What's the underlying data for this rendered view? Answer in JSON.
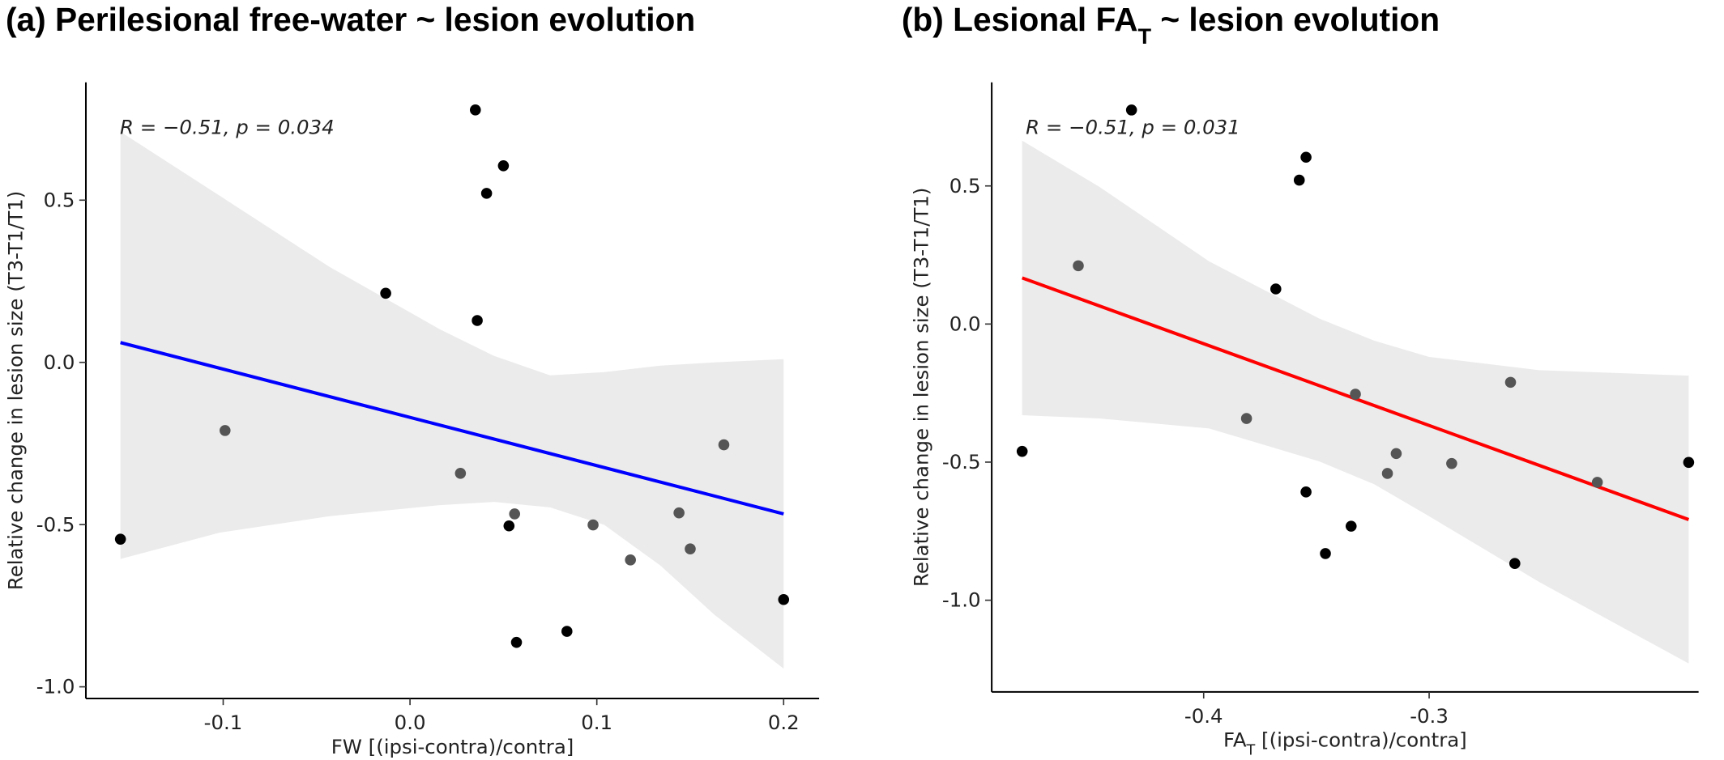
{
  "chart_data": [
    {
      "type": "scatter",
      "title": "(a) Perilesional free-water ~ lesion evolution",
      "xlabel": "FW [(ipsi-contra)/contra]",
      "ylabel": "Relative change in lesion size (T3-T1/T1)",
      "annotation": "R = −0.51, p = 0.034",
      "x": [
        -0.155,
        -0.099,
        -0.013,
        0.035,
        0.036,
        0.041,
        0.05,
        0.027,
        0.056,
        0.053,
        0.057,
        0.084,
        0.098,
        0.118,
        0.144,
        0.15,
        0.168,
        0.2
      ],
      "y": [
        -0.545,
        -0.21,
        0.213,
        0.778,
        0.129,
        0.521,
        0.606,
        -0.342,
        -0.467,
        -0.504,
        -0.863,
        -0.829,
        -0.501,
        -0.609,
        -0.464,
        -0.575,
        -0.254,
        -0.731
      ],
      "point_colors": [
        "#000000",
        "#555555",
        "#000000",
        "#000000",
        "#000000",
        "#000000",
        "#000000",
        "#555555",
        "#555555",
        "#000000",
        "#000000",
        "#000000",
        "#555555",
        "#555555",
        "#555555",
        "#555555",
        "#555555",
        "#000000"
      ],
      "fit": {
        "x": [
          -0.155,
          0.2
        ],
        "y": [
          0.061,
          -0.467
        ],
        "color": "#0000ff"
      },
      "band": {
        "x": [
          -0.155,
          -0.102,
          -0.043,
          0.016,
          0.045,
          0.075,
          0.104,
          0.134,
          0.163,
          0.2
        ],
        "upper": [
          0.711,
          0.514,
          0.294,
          0.102,
          0.02,
          -0.04,
          -0.03,
          -0.01,
          0.0,
          0.01
        ],
        "lower": [
          -0.606,
          -0.525,
          -0.474,
          -0.44,
          -0.43,
          -0.447,
          -0.501,
          -0.626,
          -0.778,
          -0.944
        ],
        "color": "#ebebeb"
      },
      "xlim": [
        -0.1735,
        0.219
      ],
      "ylim": [
        -1.036,
        0.863
      ],
      "xticks": [
        -0.1,
        {
          "value": 0,
          "label": "0.0"
        },
        0.1,
        0.2
      ],
      "yticks": [
        0.5,
        {
          "value": 0,
          "label": "0.0"
        },
        -0.5,
        {
          "value": -1,
          "label": "-1.0"
        }
      ]
    },
    {
      "type": "scatter",
      "title": [
        "(b) Lesional FA",
        "T",
        " ~ lesion evolution"
      ],
      "xlabel": [
        "FA",
        "T",
        " [(ipsi-contra)/contra]"
      ],
      "ylabel": "Relative change in lesion size (T3-T1/T1)",
      "annotation": "R = −0.51, p = 0.031",
      "x": [
        -0.4805,
        -0.4556,
        -0.432,
        -0.381,
        -0.368,
        -0.3576,
        -0.3546,
        -0.3546,
        -0.346,
        -0.3346,
        -0.3327,
        -0.3185,
        -0.3146,
        -0.29,
        -0.2639,
        -0.262,
        -0.2254,
        -0.1849
      ],
      "y": [
        -0.461,
        0.211,
        0.775,
        -0.342,
        0.127,
        0.521,
        0.604,
        -0.608,
        -0.831,
        -0.732,
        -0.254,
        -0.541,
        -0.469,
        -0.505,
        -0.211,
        -0.867,
        -0.573,
        -0.501
      ],
      "point_colors": [
        "#000000",
        "#555555",
        "#000000",
        "#555555",
        "#000000",
        "#000000",
        "#000000",
        "#000000",
        "#000000",
        "#000000",
        "#555555",
        "#555555",
        "#555555",
        "#555555",
        "#555555",
        "#000000",
        "#555555",
        "#000000"
      ],
      "fit": {
        "x": [
          -0.4805,
          -0.1849
        ],
        "y": [
          0.167,
          -0.708
        ],
        "color": "#ff0000"
      },
      "band": {
        "x": [
          -0.4805,
          -0.4463,
          -0.3976,
          -0.3488,
          -0.3244,
          -0.3,
          -0.2512,
          -0.1849
        ],
        "upper": [
          0.664,
          0.497,
          0.227,
          0.02,
          -0.06,
          -0.119,
          -0.167,
          -0.187
        ],
        "lower": [
          -0.33,
          -0.342,
          -0.378,
          -0.497,
          -0.58,
          -0.696,
          -0.934,
          -1.229
        ],
        "color": "#ebebeb"
      },
      "xlim": [
        -0.494,
        -0.1805
      ],
      "ylim": [
        -1.332,
        0.875
      ],
      "xticks": [
        -0.4,
        -0.3
      ],
      "yticks": [
        0.5,
        {
          "value": 0,
          "label": "0.0"
        },
        -0.5,
        {
          "value": -1,
          "label": "-1.0"
        }
      ]
    }
  ]
}
